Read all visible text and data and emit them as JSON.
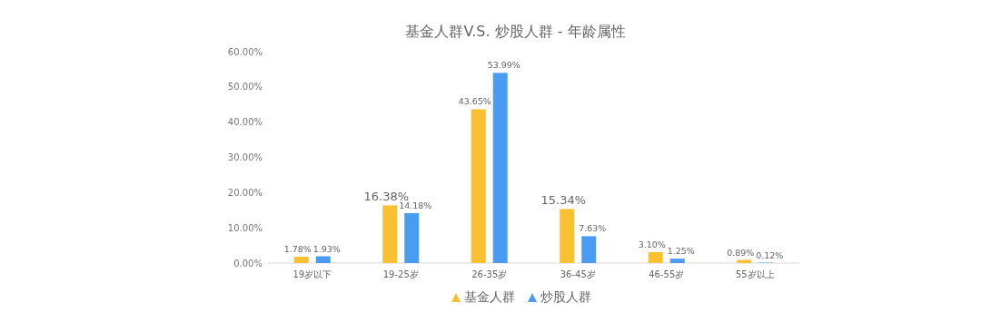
{
  "chart_data": {
    "type": "bar",
    "title": "基金人群V.S. 炒股人群 - 年龄属性",
    "categories": [
      "19岁以下",
      "19-25岁",
      "26-35岁",
      "36-45岁",
      "46-55岁",
      "55岁以上"
    ],
    "ylim": [
      0,
      60
    ],
    "yticks": [
      {
        "value": 0,
        "label": "0.00%"
      },
      {
        "value": 10,
        "label": "10.00%"
      },
      {
        "value": 20,
        "label": "20.00%"
      },
      {
        "value": 30,
        "label": "30.00%"
      },
      {
        "value": 40,
        "label": "40.00%"
      },
      {
        "value": 50,
        "label": "50.00%"
      },
      {
        "value": 60,
        "label": "60.00%"
      }
    ],
    "grid": false,
    "legend": "bottom",
    "marker": "triangle",
    "series": [
      {
        "name": "基金人群",
        "color": "#f9c031",
        "values": [
          1.78,
          16.38,
          43.65,
          15.34,
          3.1,
          0.89
        ],
        "value_labels": [
          "1.78%",
          "16.38%",
          "43.65%",
          "15.34%",
          "3.10%",
          "0.89%"
        ]
      },
      {
        "name": "炒股人群",
        "color": "#4a9cf2",
        "values": [
          1.93,
          14.18,
          53.99,
          7.63,
          1.25,
          0.12
        ],
        "value_labels": [
          "1.93%",
          "14.18%",
          "53.99%",
          "7.63%",
          "1.25%",
          "0.12%"
        ]
      }
    ]
  }
}
